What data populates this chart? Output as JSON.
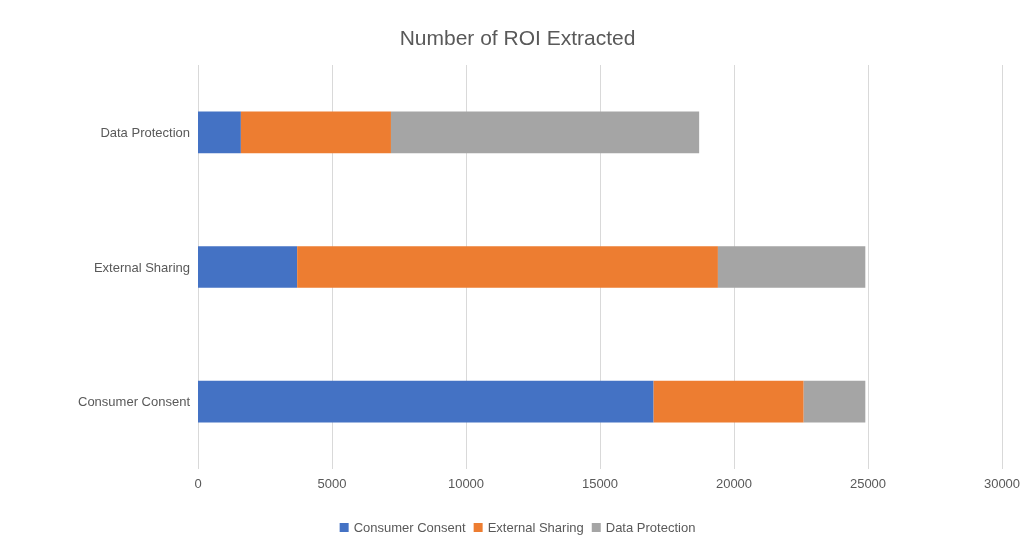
{
  "chart_data": {
    "type": "bar",
    "title": "Number of ROI Extracted",
    "orientation": "horizontal",
    "stacked": true,
    "categories": [
      "Data Protection",
      "External Sharing",
      "Consumer Consent"
    ],
    "series": [
      {
        "name": "Consumer Consent",
        "color": "#4472c4",
        "values": [
          1600,
          3700,
          17000
        ]
      },
      {
        "name": "External Sharing",
        "color": "#ed7d31",
        "values": [
          5600,
          15700,
          5600
        ]
      },
      {
        "name": "Data Protection",
        "color": "#a5a5a5",
        "values": [
          11500,
          5500,
          2300
        ]
      }
    ],
    "xlim": [
      0,
      30000
    ],
    "xticks": [
      0,
      5000,
      10000,
      15000,
      20000,
      25000,
      30000
    ],
    "grid": "x",
    "legend": "bottom"
  }
}
